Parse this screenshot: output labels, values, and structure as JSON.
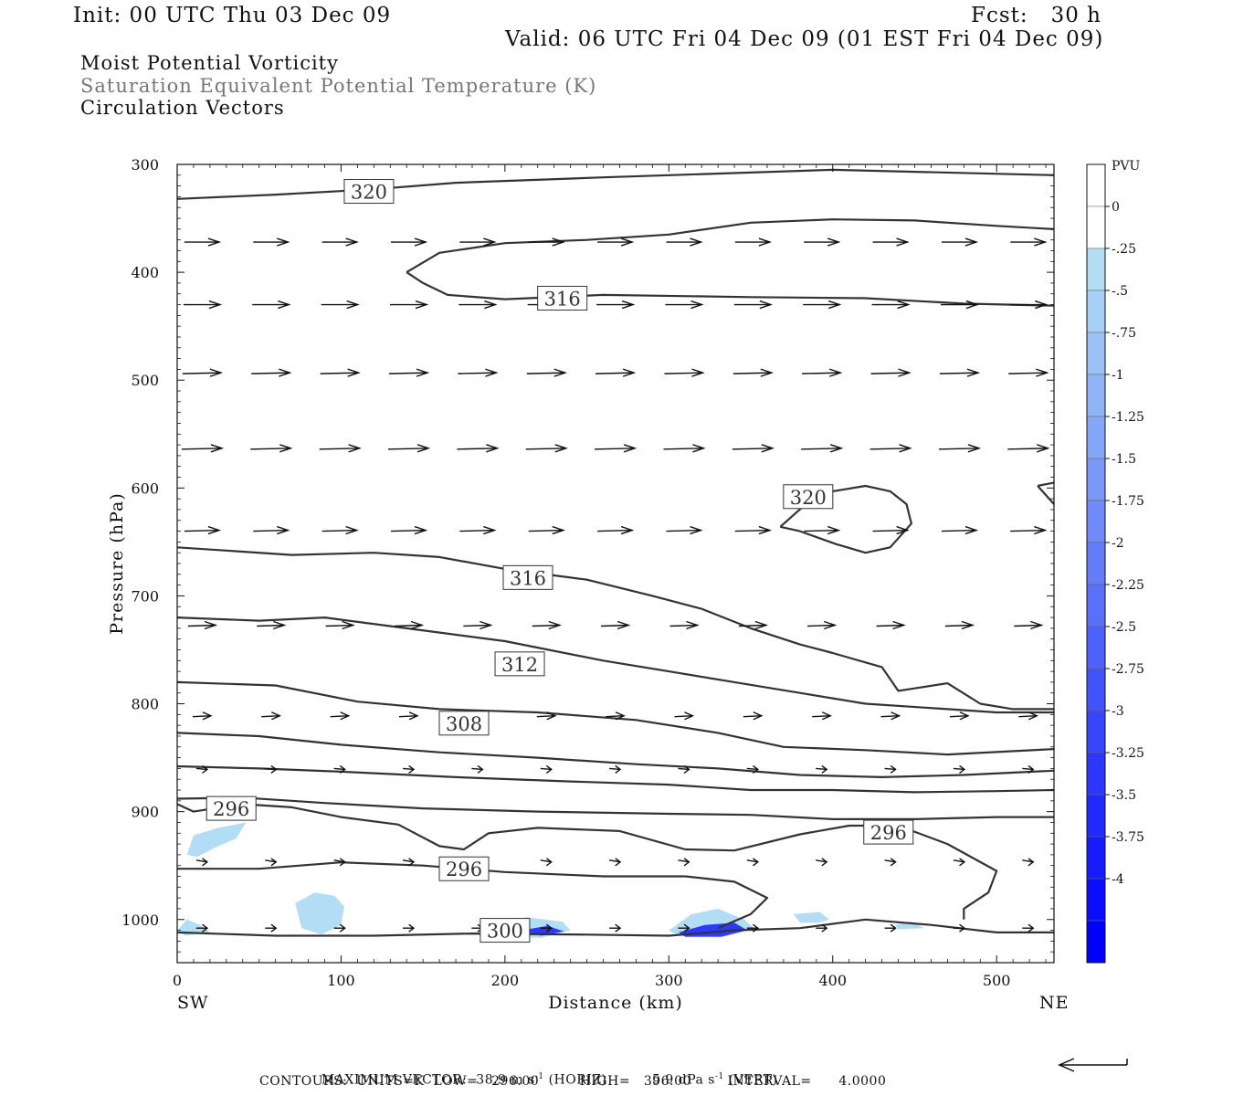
{
  "header": {
    "init": "Init: 00 UTC Thu 03 Dec 09",
    "fcst": "Fcst:   30 h",
    "valid": "Valid: 06 UTC Fri 04 Dec 09 (01 EST Fri 04 Dec 09)",
    "field1": "Moist Potential Vorticity",
    "field2": "Saturation Equivalent Potential Temperature (K)",
    "field3": "Circulation Vectors"
  },
  "footer": {
    "max_vector_label": "MAXIMUM VECTOR:",
    "horiz_value": "38.9 m s",
    "horiz_unit": "(HORIZ)",
    "vert_value": "5.9 dPa s",
    "vert_unit": "(VERT)",
    "exponent": "-1",
    "contours_line": "CONTOURS:  UNITS=K  LOW=   296.00         HIGH=   396.00        INTERVAL=      4.0000"
  },
  "colors": {
    "contour": "#333333",
    "pv_light": "#b3ddf5",
    "pv_dark": "#0000ff"
  },
  "chart_data": {
    "type": "contour",
    "xlabel": "Distance (km)",
    "ylabel": "Pressure (hPa)",
    "xlim": [
      0,
      535
    ],
    "ylim": [
      1040,
      300
    ],
    "x_ticks": [
      0,
      100,
      200,
      300,
      400,
      500
    ],
    "y_ticks": [
      300,
      400,
      500,
      600,
      700,
      800,
      900,
      1000
    ],
    "x_end_labels": {
      "left": "SW",
      "right": "NE"
    },
    "colorbar": {
      "title": "PVU",
      "levels": [
        "0",
        "-.25",
        "-.5",
        "-.75",
        "-1",
        "-1.25",
        "-1.5",
        "-1.75",
        "-2",
        "-2.25",
        "-2.5",
        "-2.75",
        "-3",
        "-3.25",
        "-3.5",
        "-3.75",
        "-4"
      ]
    },
    "contour_labels": [
      {
        "text": "320",
        "x": 117,
        "p": 325
      },
      {
        "text": "316",
        "x": 235,
        "p": 424
      },
      {
        "text": "320",
        "x": 385,
        "p": 608
      },
      {
        "text": "316",
        "x": 214,
        "p": 683
      },
      {
        "text": "312",
        "x": 209,
        "p": 763
      },
      {
        "text": "308",
        "x": 175,
        "p": 818
      },
      {
        "text": "296",
        "x": 33,
        "p": 897
      },
      {
        "text": "296",
        "x": 434,
        "p": 919
      },
      {
        "text": "296",
        "x": 175,
        "p": 953
      },
      {
        "text": "300",
        "x": 200,
        "p": 1010
      }
    ],
    "contour_lines": [
      [
        [
          0,
          332
        ],
        [
          60,
          328
        ],
        [
          120,
          323
        ],
        [
          170,
          317
        ],
        [
          260,
          312
        ],
        [
          400,
          305
        ],
        [
          535,
          310
        ]
      ],
      [
        [
          140,
          400
        ],
        [
          160,
          382
        ],
        [
          200,
          373
        ],
        [
          250,
          370
        ],
        [
          300,
          365
        ],
        [
          350,
          354
        ],
        [
          400,
          351
        ],
        [
          450,
          352
        ],
        [
          500,
          357
        ],
        [
          535,
          360
        ]
      ],
      [
        [
          140,
          400
        ],
        [
          150,
          410
        ],
        [
          165,
          421
        ],
        [
          200,
          425
        ],
        [
          260,
          421
        ],
        [
          350,
          423
        ],
        [
          420,
          424
        ],
        [
          480,
          429
        ],
        [
          535,
          431
        ]
      ],
      [
        [
          368,
          636
        ],
        [
          385,
          613
        ],
        [
          400,
          603
        ],
        [
          420,
          598
        ],
        [
          435,
          603
        ],
        [
          445,
          615
        ],
        [
          448,
          633
        ],
        [
          435,
          655
        ],
        [
          420,
          660
        ],
        [
          402,
          652
        ],
        [
          380,
          640
        ],
        [
          368,
          636
        ]
      ],
      [
        [
          525,
          598
        ],
        [
          535,
          595
        ]
      ],
      [
        [
          525,
          598
        ],
        [
          535,
          615
        ]
      ],
      [
        [
          0,
          655
        ],
        [
          30,
          658
        ],
        [
          70,
          662
        ],
        [
          120,
          660
        ],
        [
          160,
          664
        ],
        [
          200,
          675
        ],
        [
          250,
          685
        ],
        [
          290,
          700
        ],
        [
          320,
          712
        ],
        [
          350,
          730
        ],
        [
          380,
          745
        ],
        [
          400,
          753
        ],
        [
          430,
          766
        ],
        [
          440,
          788
        ],
        [
          470,
          781
        ],
        [
          490,
          800
        ],
        [
          510,
          805
        ],
        [
          535,
          805
        ]
      ],
      [
        [
          0,
          720
        ],
        [
          50,
          723
        ],
        [
          90,
          720
        ],
        [
          140,
          730
        ],
        [
          200,
          742
        ],
        [
          260,
          760
        ],
        [
          300,
          770
        ],
        [
          340,
          780
        ],
        [
          380,
          790
        ],
        [
          420,
          800
        ],
        [
          470,
          805
        ],
        [
          500,
          808
        ],
        [
          535,
          808
        ]
      ],
      [
        [
          0,
          780
        ],
        [
          60,
          783
        ],
        [
          110,
          798
        ],
        [
          160,
          805
        ],
        [
          220,
          808
        ],
        [
          280,
          815
        ],
        [
          330,
          827
        ],
        [
          370,
          840
        ],
        [
          420,
          843
        ],
        [
          470,
          847
        ],
        [
          535,
          842
        ]
      ],
      [
        [
          0,
          827
        ],
        [
          50,
          830
        ],
        [
          100,
          838
        ],
        [
          160,
          845
        ],
        [
          220,
          850
        ],
        [
          280,
          856
        ],
        [
          330,
          860
        ],
        [
          380,
          866
        ],
        [
          430,
          868
        ],
        [
          480,
          866
        ],
        [
          535,
          862
        ]
      ],
      [
        [
          0,
          858
        ],
        [
          50,
          860
        ],
        [
          100,
          863
        ],
        [
          170,
          868
        ],
        [
          240,
          872
        ],
        [
          300,
          875
        ],
        [
          350,
          880
        ],
        [
          400,
          880
        ],
        [
          450,
          882
        ],
        [
          500,
          881
        ],
        [
          535,
          880
        ]
      ],
      [
        [
          0,
          888
        ],
        [
          40,
          887
        ],
        [
          90,
          892
        ],
        [
          150,
          897
        ],
        [
          220,
          900
        ],
        [
          300,
          902
        ],
        [
          350,
          903
        ],
        [
          400,
          907
        ],
        [
          450,
          907
        ],
        [
          500,
          905
        ],
        [
          535,
          905
        ]
      ],
      [
        [
          0,
          893
        ],
        [
          10,
          900
        ],
        [
          40,
          893
        ],
        [
          70,
          896
        ],
        [
          100,
          905
        ],
        [
          135,
          912
        ],
        [
          160,
          932
        ],
        [
          175,
          935
        ],
        [
          190,
          920
        ],
        [
          220,
          915
        ],
        [
          270,
          918
        ],
        [
          310,
          935
        ],
        [
          340,
          936
        ],
        [
          380,
          921
        ],
        [
          410,
          913
        ],
        [
          440,
          913
        ],
        [
          470,
          930
        ],
        [
          500,
          955
        ],
        [
          495,
          975
        ],
        [
          480,
          990
        ],
        [
          480,
          1000
        ]
      ],
      [
        [
          0,
          953
        ],
        [
          50,
          953
        ],
        [
          100,
          947
        ],
        [
          150,
          950
        ],
        [
          200,
          956
        ],
        [
          260,
          960
        ],
        [
          310,
          960
        ],
        [
          340,
          965
        ],
        [
          360,
          980
        ],
        [
          350,
          995
        ],
        [
          330,
          1008
        ]
      ],
      [
        [
          0,
          1012
        ],
        [
          60,
          1015
        ],
        [
          120,
          1015
        ],
        [
          180,
          1013
        ],
        [
          250,
          1014
        ],
        [
          300,
          1015
        ],
        [
          340,
          1010
        ],
        [
          380,
          1008
        ],
        [
          420,
          1000
        ],
        [
          460,
          1005
        ],
        [
          500,
          1012
        ],
        [
          535,
          1012
        ]
      ]
    ],
    "pv_light_regions": [
      [
        [
          6,
          940
        ],
        [
          10,
          922
        ],
        [
          25,
          915
        ],
        [
          42,
          910
        ],
        [
          36,
          925
        ],
        [
          25,
          932
        ],
        [
          12,
          942
        ]
      ],
      [
        [
          72,
          985
        ],
        [
          84,
          975
        ],
        [
          96,
          978
        ],
        [
          102,
          988
        ],
        [
          100,
          1005
        ],
        [
          88,
          1014
        ],
        [
          76,
          1008
        ]
      ],
      [
        [
          192,
          1010
        ],
        [
          200,
          1000
        ],
        [
          214,
          998
        ],
        [
          235,
          1002
        ],
        [
          240,
          1010
        ],
        [
          222,
          1017
        ],
        [
          200,
          1016
        ]
      ],
      [
        [
          300,
          1010
        ],
        [
          314,
          995
        ],
        [
          330,
          990
        ],
        [
          346,
          1000
        ],
        [
          352,
          1008
        ],
        [
          330,
          1015
        ],
        [
          306,
          1015
        ]
      ],
      [
        [
          376,
          995
        ],
        [
          392,
          993
        ],
        [
          398,
          1000
        ],
        [
          392,
          1003
        ],
        [
          380,
          1003
        ]
      ],
      [
        [
          0,
          1010
        ],
        [
          6,
          1000
        ],
        [
          14,
          1005
        ],
        [
          20,
          1012
        ],
        [
          5,
          1015
        ]
      ],
      [
        [
          438,
          1005
        ],
        [
          448,
          1002
        ],
        [
          456,
          1008
        ],
        [
          440,
          1009
        ]
      ]
    ],
    "pv_dark_regions": [
      [
        [
          306,
          1012
        ],
        [
          322,
          1005
        ],
        [
          340,
          1003
        ],
        [
          348,
          1010
        ],
        [
          332,
          1016
        ],
        [
          310,
          1016
        ]
      ],
      [
        [
          210,
          1010
        ],
        [
          226,
          1006
        ],
        [
          236,
          1011
        ],
        [
          222,
          1015
        ]
      ]
    ],
    "arrow_rows": [
      {
        "p": 372,
        "len": 38,
        "dy": 0
      },
      {
        "p": 430,
        "len": 40,
        "dy": 0
      },
      {
        "p": 494,
        "len": 42,
        "dy": -1
      },
      {
        "p": 564,
        "len": 44,
        "dy": -1
      },
      {
        "p": 640,
        "len": 38,
        "dy": -1
      },
      {
        "p": 728,
        "len": 30,
        "dy": -1
      },
      {
        "p": 812,
        "len": 20,
        "dy": -1
      },
      {
        "p": 860,
        "len": 12,
        "dy": 1
      },
      {
        "p": 945,
        "len": 12,
        "dy": 2
      },
      {
        "p": 1008,
        "len": 12,
        "dy": 0
      }
    ],
    "arrow_x": [
      15,
      57,
      99,
      141,
      183,
      225,
      267,
      309,
      351,
      393,
      435,
      477,
      519
    ]
  }
}
